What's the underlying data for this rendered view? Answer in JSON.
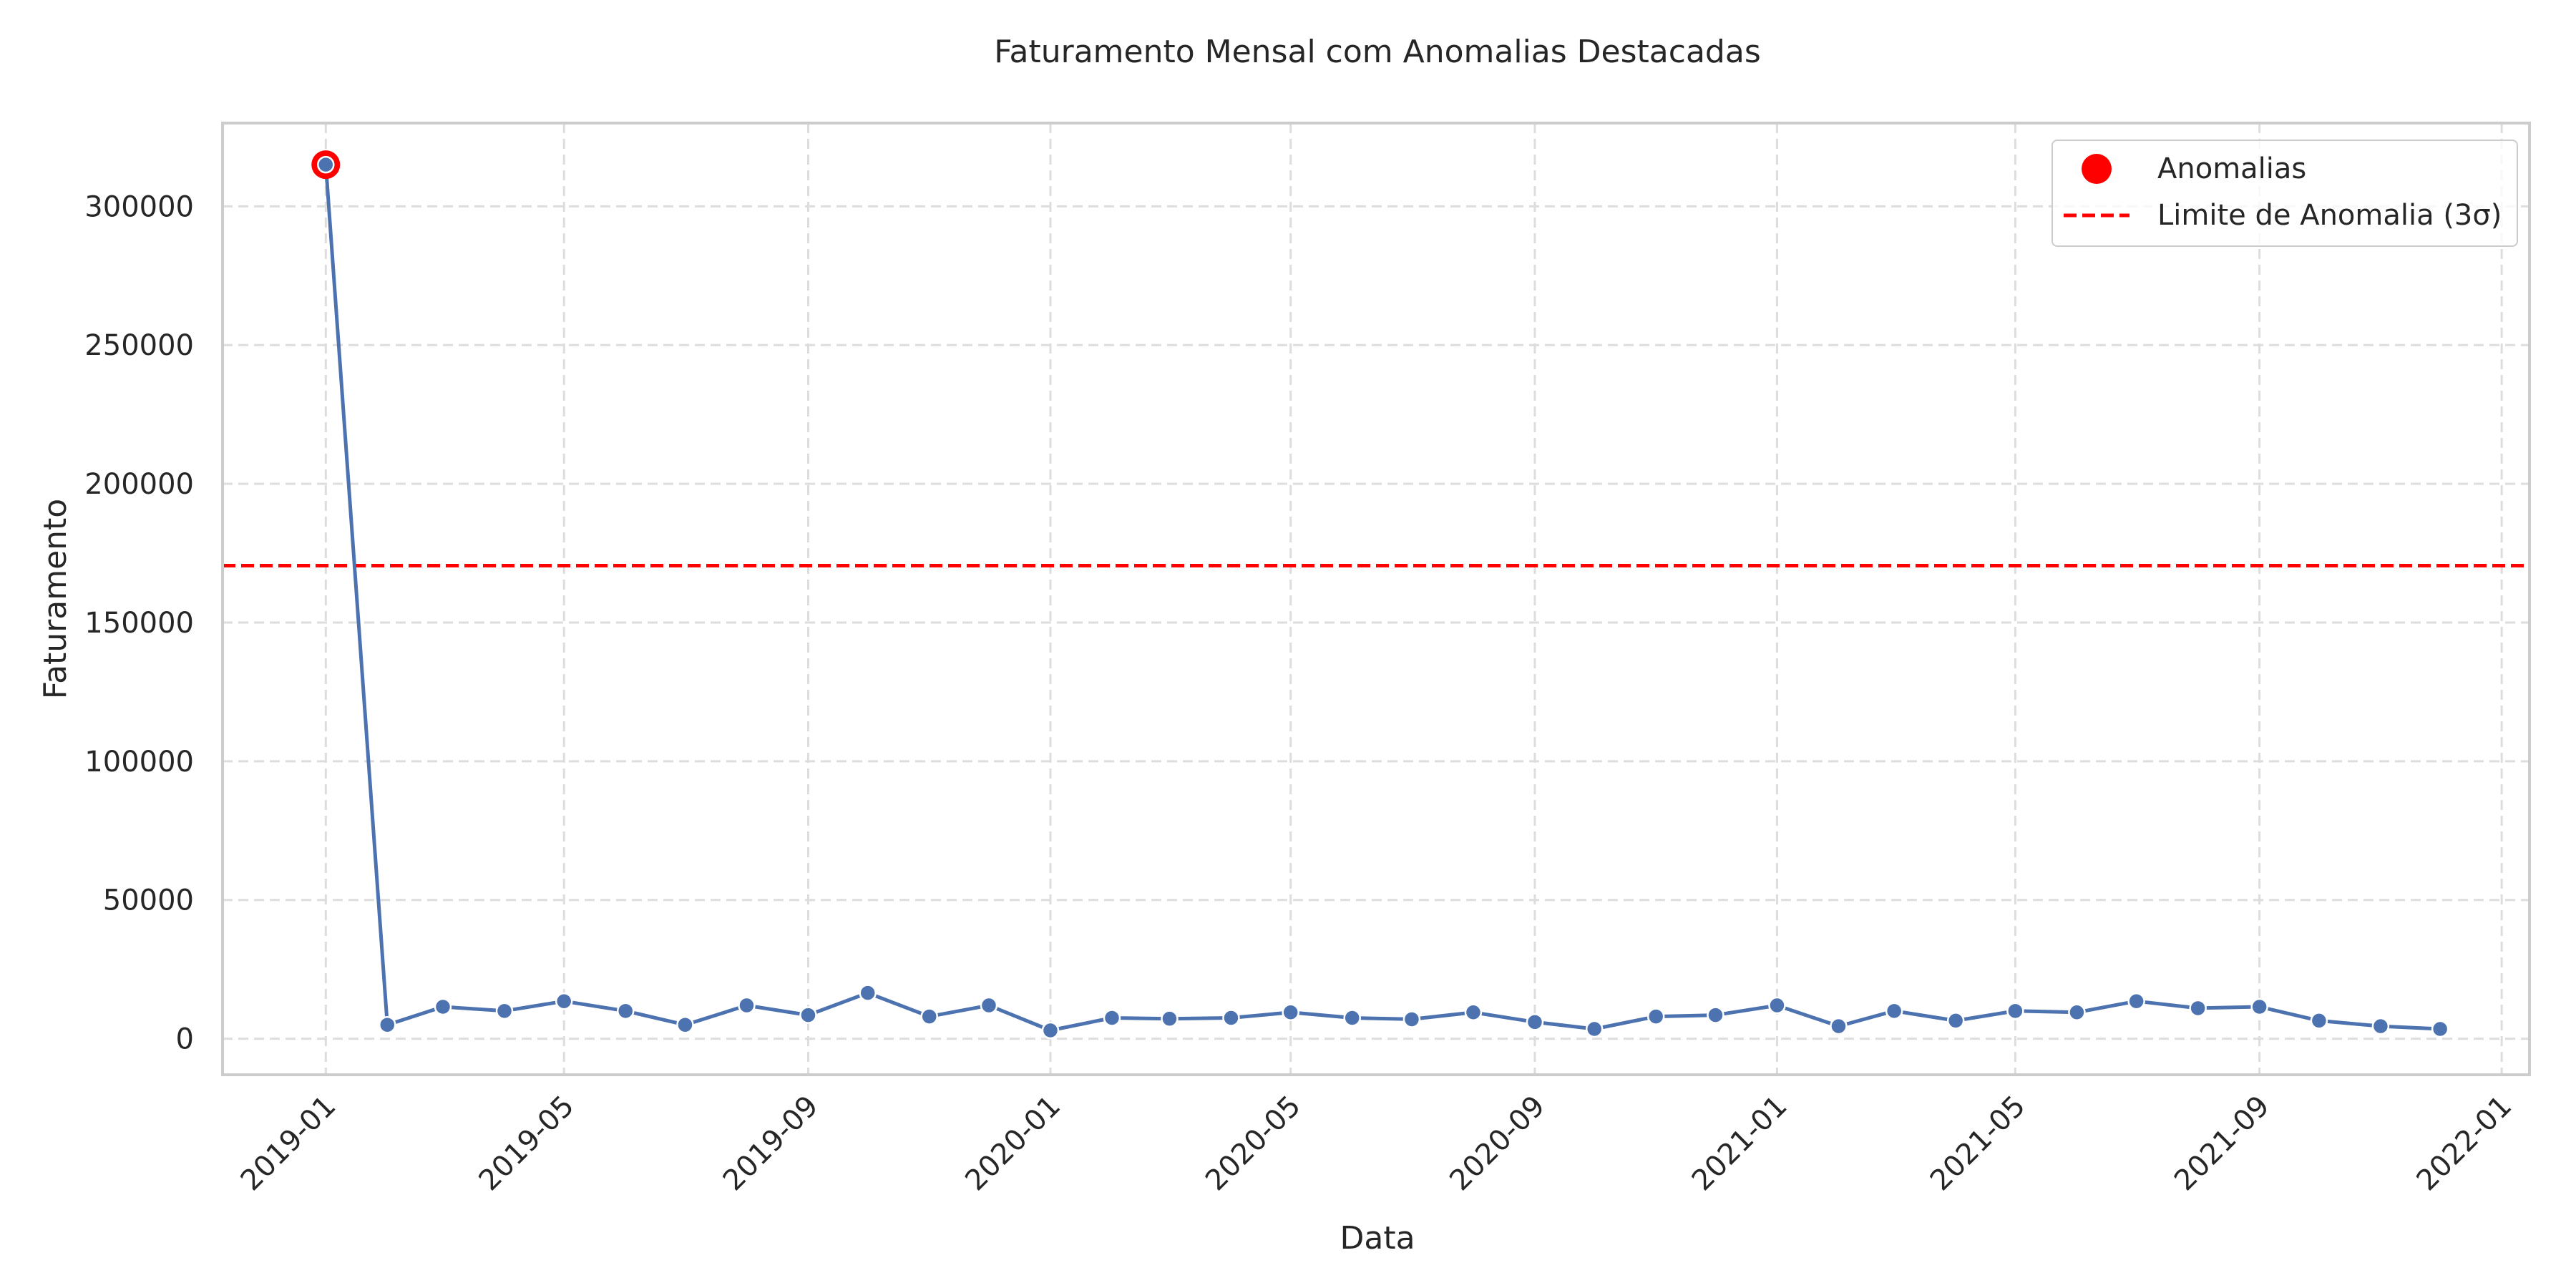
{
  "chart_data": {
    "type": "line",
    "title": "Faturamento Mensal com Anomalias Destacadas",
    "xlabel": "Data",
    "ylabel": "Faturamento",
    "x_ticks": [
      "2019-01",
      "2019-05",
      "2019-09",
      "2020-01",
      "2020-05",
      "2020-09",
      "2021-01",
      "2021-05",
      "2021-09",
      "2022-01"
    ],
    "y_ticks": [
      0,
      50000,
      100000,
      150000,
      200000,
      250000,
      300000
    ],
    "ylim": [
      -13000,
      330000
    ],
    "xlim": [
      "2018-11-10",
      "2022-01-15"
    ],
    "grid": true,
    "legend_position": "top-right",
    "series": [
      {
        "color": "#4c72b0",
        "x": [
          "2019-01",
          "2019-02",
          "2019-03",
          "2019-04",
          "2019-05",
          "2019-06",
          "2019-07",
          "2019-08",
          "2019-09",
          "2019-10",
          "2019-11",
          "2019-12",
          "2020-01",
          "2020-02",
          "2020-03",
          "2020-04",
          "2020-05",
          "2020-06",
          "2020-07",
          "2020-08",
          "2020-09",
          "2020-10",
          "2020-11",
          "2020-12",
          "2021-01",
          "2021-02",
          "2021-03",
          "2021-04",
          "2021-05",
          "2021-06",
          "2021-07",
          "2021-08",
          "2021-09",
          "2021-10",
          "2021-11",
          "2021-12"
        ],
        "values": [
          315000,
          5000,
          11500,
          10000,
          13500,
          10000,
          5000,
          12000,
          8500,
          16500,
          8000,
          12000,
          3000,
          7500,
          7200,
          7500,
          9500,
          7500,
          7000,
          9500,
          6000,
          3500,
          8000,
          8500,
          12000,
          4500,
          10000,
          6500,
          10000,
          9500,
          13500,
          11000,
          11500,
          6500,
          4500,
          3500
        ]
      }
    ],
    "anomalies": {
      "name": "Anomalias",
      "color": "#ff0000",
      "x": [
        "2019-01"
      ],
      "values": [
        315000
      ]
    },
    "threshold": {
      "name": "Limite de Anomalia (3σ)",
      "color": "#ff0000",
      "value": 170500
    }
  }
}
